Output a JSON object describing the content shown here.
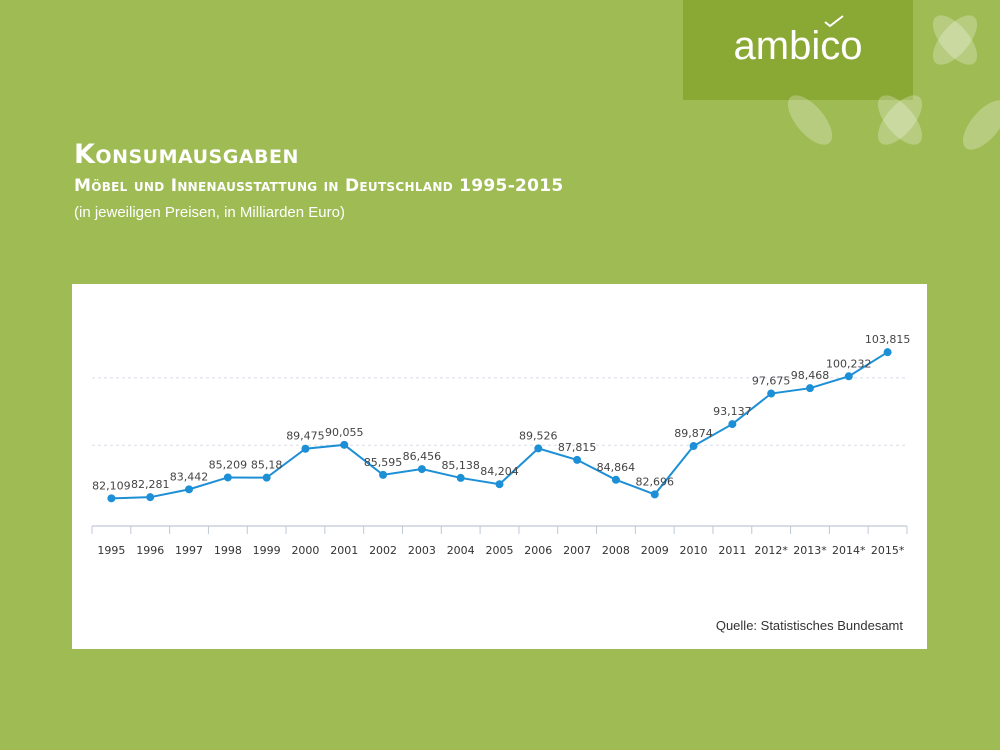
{
  "brand": {
    "name": "ambico",
    "color": "#8aa834"
  },
  "header": {
    "title": "Konsumausgaben",
    "subtitle": "Möbel und Innenausstattung in Deutschland 1995-2015",
    "note": "(in jeweiligen Preisen, in Milliarden Euro)"
  },
  "source": "Quelle: Statistisches Bundesamt",
  "colors": {
    "background": "#9fbb54",
    "line": "#1d8fd6",
    "panel": "#ffffff"
  },
  "chart_data": {
    "type": "line",
    "title": "",
    "xlabel": "",
    "ylabel": "",
    "categories": [
      "1995",
      "1996",
      "1997",
      "1998",
      "1999",
      "2000",
      "2001",
      "2002",
      "2003",
      "2004",
      "2005",
      "2006",
      "2007",
      "2008",
      "2009",
      "2010",
      "2011",
      "2012*",
      "2013*",
      "2014*",
      "2015*"
    ],
    "series": [
      {
        "values": [
          82.109,
          82.281,
          83.442,
          85.209,
          85.18,
          89.475,
          90.055,
          85.595,
          86.456,
          85.138,
          84.204,
          89.526,
          87.815,
          84.864,
          82.696,
          89.874,
          93.137,
          97.675,
          98.468,
          100.232,
          103.815
        ],
        "labels": [
          "82,109",
          "82,281",
          "83,442",
          "85,209",
          "85,18",
          "89,475",
          "90,055",
          "85,595",
          "86,456",
          "85,138",
          "84,204",
          "89,526",
          "87,815",
          "84,864",
          "82,696",
          "89,874",
          "93,137",
          "97,675",
          "98,468",
          "100,232",
          "103,815"
        ]
      }
    ],
    "ylim": [
      78,
      108
    ],
    "gridlines_y": [
      90,
      100
    ],
    "grid": "horizontal dashed",
    "legend": "none",
    "data_labels": true
  }
}
